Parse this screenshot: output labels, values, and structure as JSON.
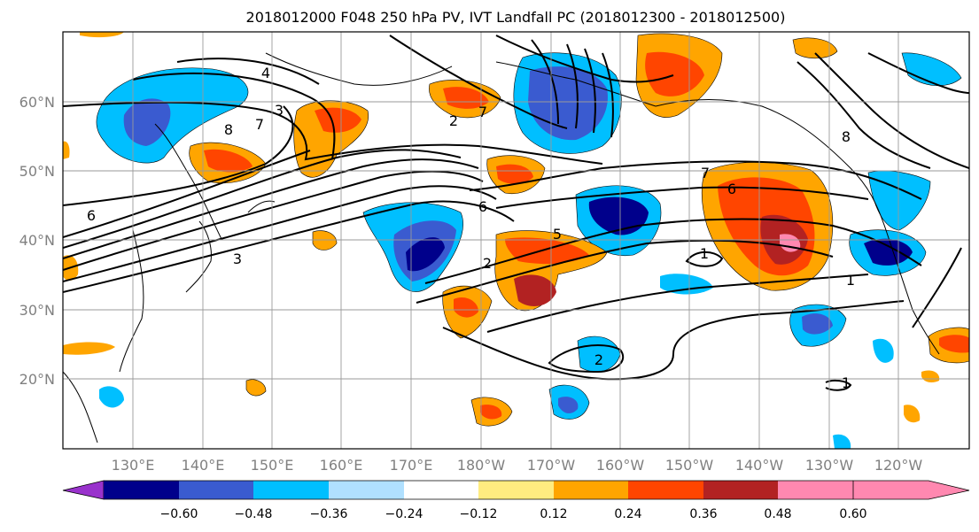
{
  "title": "2018012000 F048 250 hPa PV, IVT Landfall PC (2018012300 - 2018012500)",
  "latitude_labels": [
    "60°N",
    "50°N",
    "40°N",
    "30°N",
    "20°N"
  ],
  "longitude_labels": [
    "130°E",
    "140°E",
    "150°E",
    "160°E",
    "170°E",
    "180°W",
    "170°W",
    "160°W",
    "150°W",
    "140°W",
    "130°W",
    "120°W"
  ],
  "contour_labels": [
    "4",
    "3",
    "8",
    "7",
    "2",
    "7",
    "8",
    "7",
    "6",
    "6",
    "6",
    "5",
    "3",
    "2",
    "1",
    "1",
    "2",
    "1"
  ],
  "colorbar": {
    "tick_labels": [
      "−0.60",
      "−0.48",
      "−0.36",
      "−0.24",
      "−0.12",
      "0.12",
      "0.24",
      "0.36",
      "0.48",
      "0.60"
    ],
    "colors": [
      "#9932cc",
      "#00008b",
      "#3a5bd0",
      "#00bfff",
      "#b0e0ff",
      "#ffffff",
      "#ffec80",
      "#ffa500",
      "#ff4500",
      "#b22222",
      "#ff88b0"
    ]
  }
}
